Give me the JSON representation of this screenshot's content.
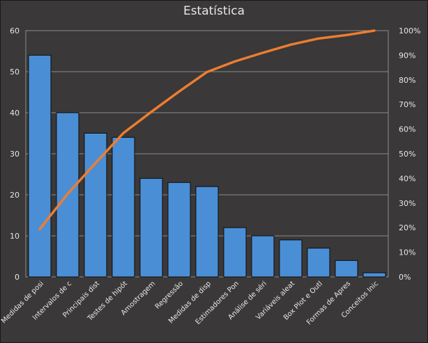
{
  "chart_data": {
    "type": "bar",
    "title": "Estatística",
    "categories": [
      "Medidas de posi",
      "Intervalos de c",
      "Principais dist",
      "Testes de hipót",
      "Amostragem",
      "Regressão",
      "Medidas de disp",
      "Estimadores Pon",
      "Análise de séri",
      "Variáveis aleat",
      "Box Plot e Outl",
      "Formas de Apres",
      "Conceitos Inic"
    ],
    "series": [
      {
        "type": "bar",
        "axis": "left",
        "values": [
          54,
          40,
          35,
          34,
          24,
          23,
          22,
          12,
          10,
          9,
          7,
          4,
          1
        ]
      },
      {
        "type": "line",
        "axis": "right",
        "values": [
          19.4,
          33.7,
          46.2,
          58.4,
          67.0,
          75.3,
          83.2,
          87.5,
          91.0,
          94.3,
          96.8,
          98.2,
          100
        ]
      }
    ],
    "ylim_left": [
      0,
      60
    ],
    "yticks_left": [
      "0",
      "10",
      "20",
      "30",
      "40",
      "50",
      "60"
    ],
    "ylim_right": [
      0,
      100
    ],
    "yticks_right": [
      "0%",
      "10%",
      "20%",
      "30%",
      "40%",
      "50%",
      "60%",
      "70%",
      "80%",
      "90%",
      "100%"
    ],
    "grid": true,
    "legend": "none",
    "colors": {
      "bar": "#4a8fd6",
      "bar_stroke": "#0d0d0d",
      "line": "#ed7d31",
      "grid": "#8c8c8c",
      "text": "#e8e8e8",
      "background": "#3a3838"
    }
  }
}
